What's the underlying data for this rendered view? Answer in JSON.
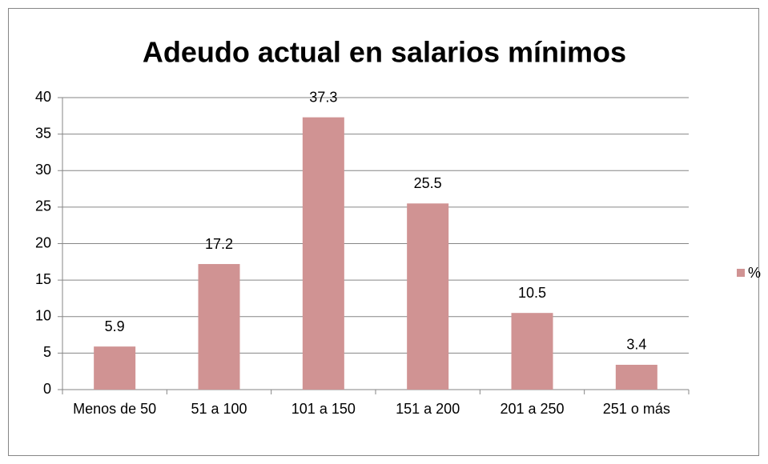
{
  "chart_data": {
    "type": "bar",
    "title": "Adeudo actual en salarios mínimos",
    "categories": [
      "Menos de 50",
      "51 a 100",
      "101 a 150",
      "151 a 200",
      "201 a 250",
      "251 o más"
    ],
    "series": [
      {
        "name": "%",
        "color": "#d09393",
        "values": [
          5.9,
          17.2,
          37.3,
          25.5,
          10.5,
          3.4
        ]
      }
    ],
    "ylim": [
      0,
      40
    ],
    "yticks": [
      0,
      5,
      10,
      15,
      20,
      25,
      30,
      35,
      40
    ],
    "grid": true,
    "legend": "right"
  }
}
